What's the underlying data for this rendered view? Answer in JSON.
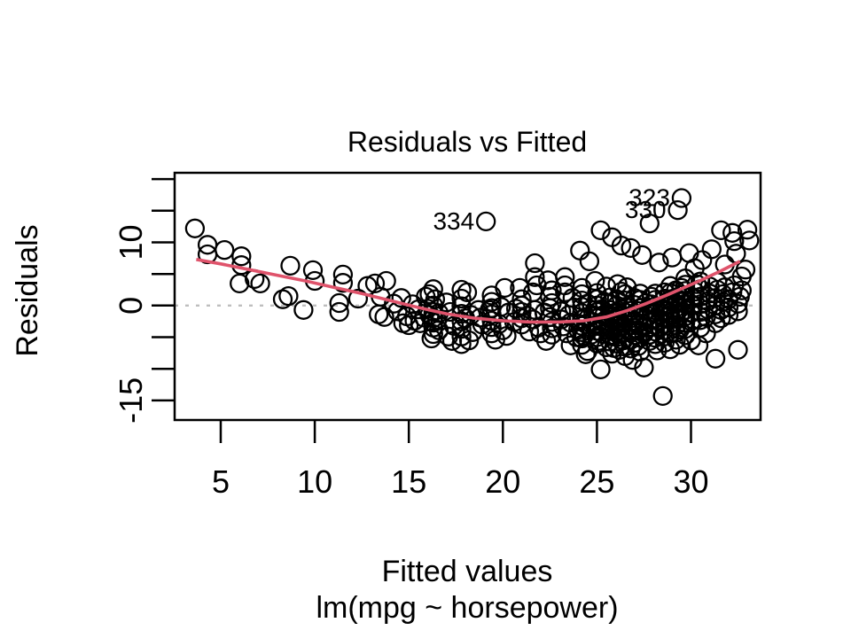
{
  "chart_data": {
    "type": "scatter",
    "title": "Residuals vs Fitted",
    "xlabel": "Fitted values",
    "sublabel": "lm(mpg ~ horsepower)",
    "ylabel": "Residuals",
    "xlim": [
      2.55,
      33.7
    ],
    "ylim": [
      -18.1,
      21.0
    ],
    "grid": false,
    "legend": null,
    "point_style": "open-circle",
    "point_color": "#000000",
    "x_ticks": [
      {
        "v": 5,
        "label": "5"
      },
      {
        "v": 10,
        "label": "10"
      },
      {
        "v": 15,
        "label": "15"
      },
      {
        "v": 20,
        "label": "20"
      },
      {
        "v": 25,
        "label": "25"
      },
      {
        "v": 30,
        "label": "30"
      }
    ],
    "y_ticks": [
      {
        "v": 20,
        "label": ""
      },
      {
        "v": 15,
        "label": ""
      },
      {
        "v": 10,
        "label": "10"
      },
      {
        "v": 5,
        "label": ""
      },
      {
        "v": 0,
        "label": "0"
      },
      {
        "v": -5,
        "label": ""
      },
      {
        "v": -10,
        "label": ""
      },
      {
        "v": -15,
        "label": "-15"
      }
    ],
    "zero_line": {
      "y": 0,
      "color": "#BEBEBE",
      "style": "dotted"
    },
    "smooth_line": {
      "color": "#DF536B",
      "points": [
        [
          3.7,
          7.3
        ],
        [
          5.0,
          6.6
        ],
        [
          6.5,
          5.7
        ],
        [
          8.0,
          4.8
        ],
        [
          9.5,
          3.9
        ],
        [
          11.0,
          2.9
        ],
        [
          12.5,
          1.9
        ],
        [
          14.0,
          0.8
        ],
        [
          15.5,
          -0.3
        ],
        [
          17.0,
          -1.3
        ],
        [
          18.5,
          -2.0
        ],
        [
          20.0,
          -2.4
        ],
        [
          21.5,
          -2.6
        ],
        [
          23.0,
          -2.6
        ],
        [
          24.3,
          -2.4
        ],
        [
          25.5,
          -1.8
        ],
        [
          26.6,
          -0.8
        ],
        [
          27.6,
          0.3
        ],
        [
          28.6,
          1.5
        ],
        [
          29.6,
          2.8
        ],
        [
          30.6,
          4.1
        ],
        [
          31.6,
          5.5
        ],
        [
          32.6,
          7.0
        ]
      ]
    },
    "labeled_points": [
      {
        "label": "334",
        "x": 19.1,
        "y": 13.3
      },
      {
        "label": "323",
        "x": 29.5,
        "y": 17.0
      },
      {
        "label": "330",
        "x": 29.3,
        "y": 15.1
      }
    ],
    "points": [
      [
        3.63,
        12.2
      ],
      [
        4.3,
        9.6
      ],
      [
        4.3,
        8.1
      ],
      [
        5.2,
        8.8
      ],
      [
        6.1,
        7.8
      ],
      [
        6.1,
        6.4
      ],
      [
        6,
        3.5
      ],
      [
        6.8,
        4.2
      ],
      [
        7.1,
        3.5
      ],
      [
        8.7,
        6.3
      ],
      [
        8.6,
        1.5
      ],
      [
        8.3,
        1
      ],
      [
        9.9,
        5.6
      ],
      [
        10,
        3.9
      ],
      [
        9.4,
        -0.7
      ],
      [
        11.5,
        4.9
      ],
      [
        11.5,
        3.6
      ],
      [
        11.3,
        0.4
      ],
      [
        11.3,
        -1
      ],
      [
        12.3,
        1.1
      ],
      [
        12.8,
        3.1
      ],
      [
        13.2,
        3.5
      ],
      [
        13.8,
        3.9
      ],
      [
        13.5,
        1.4
      ],
      [
        13.4,
        -1.4
      ],
      [
        13.7,
        -1.8
      ],
      [
        14.2,
        0.3
      ],
      [
        14.4,
        -0.9
      ],
      [
        14.7,
        -2.8
      ],
      [
        15,
        -3.1
      ],
      [
        15.3,
        -2.4
      ],
      [
        15.6,
        -2.8
      ],
      [
        15.9,
        1.4
      ],
      [
        14.9,
        -1.7
      ],
      [
        15.5,
        -0.6
      ],
      [
        15.8,
        -1.9
      ],
      [
        14.6,
        1.2
      ],
      [
        15.2,
        0.2
      ],
      [
        16.1,
        1.8
      ],
      [
        16.4,
        1
      ],
      [
        16.3,
        -3.5
      ],
      [
        16.6,
        -3.9
      ],
      [
        16.3,
        0
      ],
      [
        16.3,
        -1
      ],
      [
        16.3,
        -2
      ],
      [
        16.3,
        -2.7
      ],
      [
        16.3,
        -4.5
      ],
      [
        16.3,
        2.6
      ],
      [
        16.1,
        -1.5
      ],
      [
        16.5,
        -2.3
      ],
      [
        16,
        -0.5
      ],
      [
        16.6,
        -1.2
      ],
      [
        16.2,
        -5.2
      ],
      [
        17.1,
        -4.9
      ],
      [
        17.3,
        -5.6
      ],
      [
        17.2,
        -1
      ],
      [
        17,
        0.5
      ],
      [
        17.4,
        -3.2
      ],
      [
        17.8,
        -6.1
      ],
      [
        17.8,
        -4.9
      ],
      [
        17.8,
        -3.7
      ],
      [
        17.8,
        -2.5
      ],
      [
        17.8,
        -1.3
      ],
      [
        17.8,
        -0.1
      ],
      [
        17.8,
        1.1
      ],
      [
        18,
        -2
      ],
      [
        18.3,
        -1.5
      ],
      [
        18.1,
        2.1
      ],
      [
        17.8,
        2.5
      ],
      [
        18.4,
        -4.2
      ],
      [
        18.2,
        -5.5
      ],
      [
        18.7,
        -0.7
      ],
      [
        19.3,
        -0.7
      ],
      [
        19.4,
        -4.4
      ],
      [
        19.4,
        -3.4
      ],
      [
        19.4,
        -2.4
      ],
      [
        19.4,
        -1.4
      ],
      [
        19.4,
        -0.4
      ],
      [
        19.4,
        0.6
      ],
      [
        19.4,
        1.6
      ],
      [
        19.6,
        -5.4
      ],
      [
        20.1,
        2.8
      ],
      [
        20.3,
        -1.1
      ],
      [
        19.8,
        -2.9
      ],
      [
        20,
        -3.9
      ],
      [
        18.9,
        -3
      ],
      [
        18.8,
        -1.9
      ],
      [
        19.9,
        -0.2
      ],
      [
        20.2,
        -4.8
      ],
      [
        20.9,
        2.8
      ],
      [
        21,
        -3
      ],
      [
        21,
        -2
      ],
      [
        21,
        -1
      ],
      [
        21,
        0
      ],
      [
        21,
        1
      ],
      [
        21.6,
        2.1
      ],
      [
        21.7,
        6.7
      ],
      [
        21.7,
        4.5
      ],
      [
        21.8,
        3.2
      ],
      [
        21.7,
        -0.7
      ],
      [
        21.6,
        -2.2
      ],
      [
        21.9,
        -3.5
      ],
      [
        22.2,
        -1.1
      ],
      [
        22.5,
        1.4
      ],
      [
        22.5,
        -0.4
      ],
      [
        22.5,
        -1.8
      ],
      [
        22.6,
        -4.6
      ],
      [
        22.6,
        -3.6
      ],
      [
        22.6,
        -2.6
      ],
      [
        22.6,
        0.4
      ],
      [
        22.6,
        2.4
      ],
      [
        22.3,
        -5.6
      ],
      [
        22,
        -4.4
      ],
      [
        21.3,
        -1.6
      ],
      [
        20.7,
        -0.5
      ],
      [
        20.6,
        -2.6
      ],
      [
        22.4,
        4
      ],
      [
        21.4,
        -4.1
      ],
      [
        23.1,
        -0.9
      ],
      [
        23.3,
        4.5
      ],
      [
        23.3,
        3.2
      ],
      [
        23.3,
        2.1
      ],
      [
        23.1,
        -2.2
      ],
      [
        23.2,
        -3.3
      ],
      [
        23.4,
        -4.4
      ],
      [
        23.5,
        -1.5
      ],
      [
        23.6,
        -2.7
      ],
      [
        23.8,
        -0.3
      ],
      [
        23.9,
        -5
      ],
      [
        24.1,
        8.7
      ],
      [
        24.2,
        -6.2
      ],
      [
        24.2,
        -5.2
      ],
      [
        24.2,
        -4.2
      ],
      [
        24.2,
        -3.2
      ],
      [
        24.2,
        -2.2
      ],
      [
        24.2,
        -1.2
      ],
      [
        24.2,
        -0.2
      ],
      [
        24.2,
        0.8
      ],
      [
        24.2,
        1.8
      ],
      [
        24.2,
        2.8
      ],
      [
        24,
        -3.8
      ],
      [
        24.4,
        -2.9
      ],
      [
        24.4,
        -1.8
      ],
      [
        24.3,
        -4.8
      ],
      [
        24.5,
        0.3
      ],
      [
        23.7,
        1.2
      ],
      [
        24.5,
        -7.2
      ],
      [
        23.6,
        -6.3
      ],
      [
        24.4,
        -7.7
      ],
      [
        24.6,
        7
      ],
      [
        25.2,
        11.9
      ],
      [
        25.8,
        10.8
      ],
      [
        25,
        -6
      ],
      [
        25,
        -5
      ],
      [
        25,
        -4
      ],
      [
        25,
        -3
      ],
      [
        25,
        -2
      ],
      [
        25,
        -1
      ],
      [
        25,
        0
      ],
      [
        25,
        1
      ],
      [
        25,
        2
      ],
      [
        25.2,
        -10.1
      ],
      [
        25.3,
        -4.5
      ],
      [
        25.3,
        -3.4
      ],
      [
        25.4,
        -2.4
      ],
      [
        25.4,
        -1.4
      ],
      [
        25.2,
        -0.6
      ],
      [
        25.1,
        -5.6
      ],
      [
        25.5,
        -6.6
      ],
      [
        25.4,
        0.6
      ],
      [
        24.8,
        -2.6
      ],
      [
        24.8,
        -1.5
      ],
      [
        24.9,
        -0.7
      ],
      [
        24.7,
        -3.5
      ],
      [
        24.7,
        -4.6
      ],
      [
        25.5,
        3
      ],
      [
        24.9,
        3.9
      ],
      [
        25.7,
        -5.7
      ],
      [
        25.7,
        -4.7
      ],
      [
        25.7,
        -3.7
      ],
      [
        25.7,
        -2.7
      ],
      [
        25.7,
        -1.7
      ],
      [
        25.7,
        -0.7
      ],
      [
        25.7,
        0.3
      ],
      [
        25.7,
        1.3
      ],
      [
        25.9,
        -6.7
      ],
      [
        25.9,
        -3.2
      ],
      [
        25.9,
        -2.2
      ],
      [
        25.9,
        -1.2
      ],
      [
        26.05,
        -6
      ],
      [
        26.05,
        -5
      ],
      [
        26.05,
        -4
      ],
      [
        26.05,
        -3
      ],
      [
        26.05,
        -2
      ],
      [
        26.05,
        -1
      ],
      [
        26.05,
        0
      ],
      [
        26.05,
        1
      ],
      [
        26.2,
        -7
      ],
      [
        26.2,
        -4.5
      ],
      [
        26.2,
        -3.5
      ],
      [
        26.2,
        -2.5
      ],
      [
        26.2,
        -1.5
      ],
      [
        26.4,
        -5.5
      ],
      [
        26.4,
        -4.2
      ],
      [
        26.4,
        -3.2
      ],
      [
        26.4,
        -2.1
      ],
      [
        26.5,
        -6.5
      ],
      [
        26.5,
        -1.1
      ],
      [
        26.5,
        -0.2
      ],
      [
        26.5,
        0.8
      ],
      [
        26.5,
        1.8
      ],
      [
        26.3,
        9.5
      ],
      [
        26.6,
        2.9
      ],
      [
        26.3,
        2.2
      ],
      [
        26.1,
        3.4
      ],
      [
        26.5,
        -8
      ],
      [
        25.8,
        -7.6
      ],
      [
        26.9,
        -8.6
      ],
      [
        26.8,
        9.1
      ],
      [
        26.8,
        -6.8
      ],
      [
        26.8,
        -5.4
      ],
      [
        26.8,
        -4.3
      ],
      [
        26.8,
        -3.1
      ],
      [
        26.8,
        -2
      ],
      [
        26.8,
        -0.8
      ],
      [
        27,
        -5.9
      ],
      [
        27,
        -4.7
      ],
      [
        27,
        -3.6
      ],
      [
        27,
        -2.4
      ],
      [
        27,
        -1.2
      ],
      [
        27,
        0.1
      ],
      [
        27,
        1.2
      ],
      [
        27.2,
        -6.4
      ],
      [
        27.2,
        -3.9
      ],
      [
        27.2,
        -2.8
      ],
      [
        27.3,
        -7.3
      ],
      [
        27.3,
        -5.1
      ],
      [
        27.3,
        -1.6
      ],
      [
        27.3,
        -0.4
      ],
      [
        27.3,
        0.9
      ],
      [
        27.3,
        1.9
      ],
      [
        27.5,
        -9.8
      ],
      [
        27.5,
        -4.4
      ],
      [
        27.5,
        -3.3
      ],
      [
        27.6,
        -2.1
      ],
      [
        27.6,
        -0.9
      ],
      [
        27.6,
        0.4
      ],
      [
        27.4,
        8
      ],
      [
        27.8,
        -5.6
      ],
      [
        27.8,
        -4.6
      ],
      [
        27.8,
        -3.4
      ],
      [
        27.9,
        -2.3
      ],
      [
        27.9,
        -1.1
      ],
      [
        27.9,
        0.2
      ],
      [
        27.9,
        1.4
      ],
      [
        27.8,
        13
      ],
      [
        28.1,
        -6.1
      ],
      [
        28.1,
        -5.1
      ],
      [
        28.1,
        -4.1
      ],
      [
        28.1,
        -3.1
      ],
      [
        28.1,
        -2.1
      ],
      [
        28.1,
        -1.1
      ],
      [
        28.1,
        -0.1
      ],
      [
        28.1,
        0.9
      ],
      [
        28.1,
        1.9
      ],
      [
        28.3,
        6.8
      ],
      [
        28.2,
        -7.1
      ],
      [
        28.3,
        -3.6
      ],
      [
        28.3,
        -2.5
      ],
      [
        28.5,
        -14.3
      ],
      [
        28.6,
        -5.9
      ],
      [
        28.6,
        -4.9
      ],
      [
        28.6,
        -3.9
      ],
      [
        28.6,
        -2.9
      ],
      [
        28.6,
        -1.9
      ],
      [
        28.6,
        -0.9
      ],
      [
        28.6,
        0.1
      ],
      [
        28.6,
        1.1
      ],
      [
        28.6,
        2.1
      ],
      [
        28.9,
        -6.9
      ],
      [
        28.9,
        -4.4
      ],
      [
        28.9,
        -3.3
      ],
      [
        28.9,
        -2.2
      ],
      [
        28.9,
        -1.1
      ],
      [
        28.9,
        0
      ],
      [
        28.9,
        1
      ],
      [
        28.9,
        2
      ],
      [
        28.9,
        3.1
      ],
      [
        29,
        7.6
      ],
      [
        29.2,
        -5.4
      ],
      [
        29.2,
        -4.3
      ],
      [
        29.2,
        -3.2
      ],
      [
        29.2,
        -2.1
      ],
      [
        29.2,
        -0.9
      ],
      [
        29.2,
        0.3
      ],
      [
        29.2,
        1.3
      ],
      [
        29.2,
        2.4
      ],
      [
        29.4,
        -6.2
      ],
      [
        29.4,
        -3.8
      ],
      [
        29.4,
        -1.6
      ],
      [
        29.4,
        -0.5
      ],
      [
        29.5,
        0.6
      ],
      [
        29.5,
        1.7
      ],
      [
        29.5,
        2.8
      ],
      [
        29.7,
        -4.7
      ],
      [
        29.7,
        -3.7
      ],
      [
        29.7,
        -2.7
      ],
      [
        29.7,
        -1.7
      ],
      [
        29.7,
        -0.7
      ],
      [
        29.7,
        0.3
      ],
      [
        29.7,
        1.3
      ],
      [
        29.7,
        2.3
      ],
      [
        29.7,
        3.3
      ],
      [
        29.7,
        4.3
      ],
      [
        29.9,
        8.3
      ],
      [
        30,
        -5.5
      ],
      [
        30,
        -2.5
      ],
      [
        30,
        -1.2
      ],
      [
        30.1,
        0
      ],
      [
        30.1,
        1.1
      ],
      [
        30.2,
        5.9
      ],
      [
        30.2,
        2.2
      ],
      [
        30.3,
        3.4
      ],
      [
        30.4,
        -6.3
      ],
      [
        30.5,
        -3.5
      ],
      [
        30.5,
        -2.3
      ],
      [
        30.5,
        -1
      ],
      [
        30.5,
        0.2
      ],
      [
        30.5,
        1.4
      ],
      [
        30.5,
        2.6
      ],
      [
        30.5,
        3.8
      ],
      [
        30.6,
        7.2
      ],
      [
        30.8,
        -4.4
      ],
      [
        30.8,
        -1.8
      ],
      [
        30.9,
        -0.6
      ],
      [
        30.9,
        0.7
      ],
      [
        31,
        1.9
      ],
      [
        31,
        3
      ],
      [
        31.1,
        8.9
      ],
      [
        31.3,
        -8.4
      ],
      [
        31.3,
        -2.8
      ],
      [
        31.3,
        -1.4
      ],
      [
        31.3,
        0
      ],
      [
        31.3,
        1.2
      ],
      [
        31.4,
        2.5
      ],
      [
        31.4,
        3.7
      ],
      [
        31.6,
        11.9
      ],
      [
        31.6,
        -2
      ],
      [
        31.6,
        -0.7
      ],
      [
        31.7,
        0.6
      ],
      [
        31.7,
        1.8
      ],
      [
        31.8,
        6.5
      ],
      [
        31.8,
        2.9
      ],
      [
        32,
        -1.5
      ],
      [
        32,
        -0.3
      ],
      [
        32,
        1
      ],
      [
        32.2,
        11.5
      ],
      [
        32.3,
        10.2
      ],
      [
        32.2,
        2.1
      ],
      [
        32.3,
        3.2
      ],
      [
        32.4,
        8.2
      ],
      [
        32.5,
        -7
      ],
      [
        32.5,
        -0.9
      ],
      [
        32.5,
        0.3
      ],
      [
        32.6,
        1.4
      ],
      [
        32.7,
        4.6
      ],
      [
        32.7,
        2.4
      ],
      [
        33,
        12
      ],
      [
        33.1,
        10.3
      ],
      [
        32.9,
        5.7
      ]
    ]
  }
}
